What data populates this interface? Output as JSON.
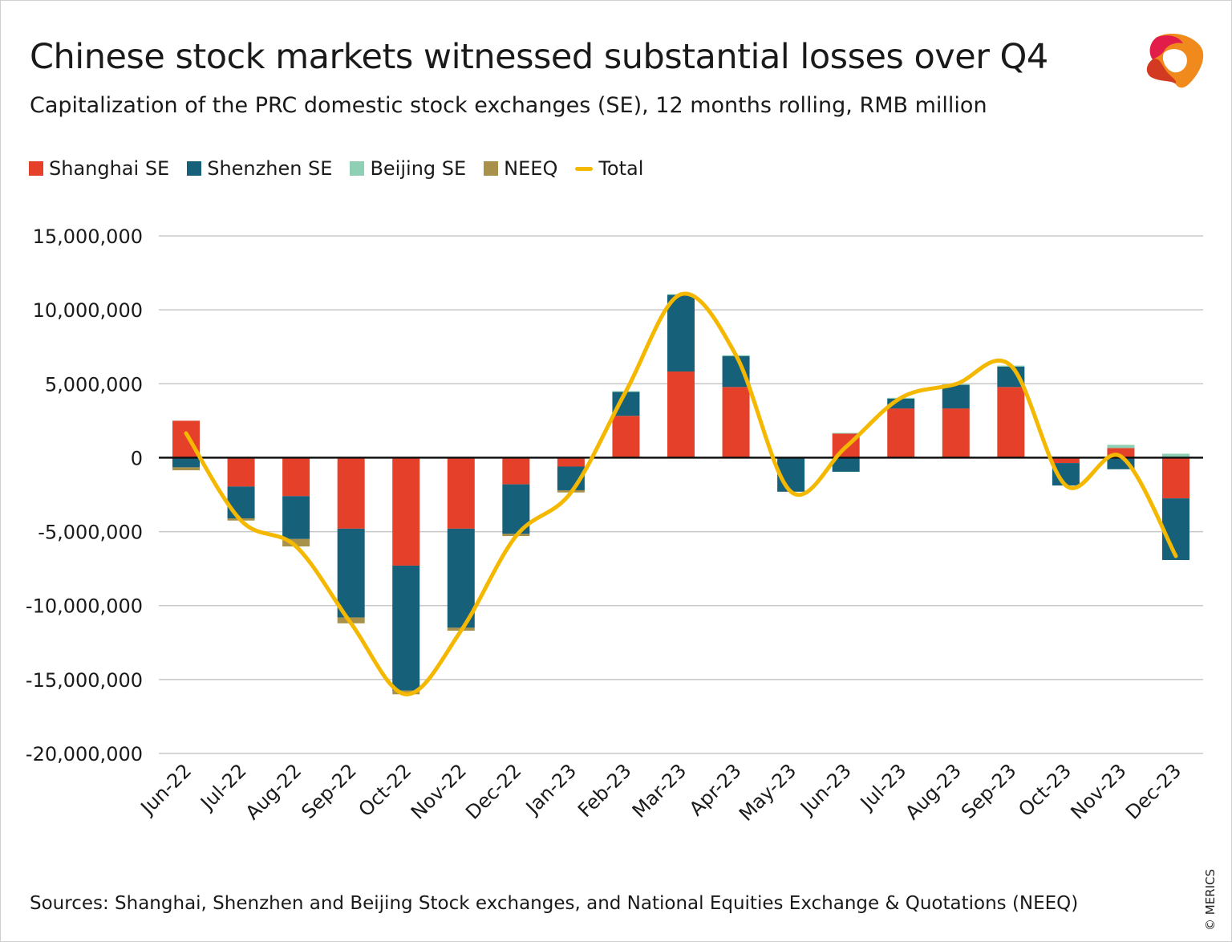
{
  "title": "Chinese stock markets witnessed substantial losses over Q4",
  "subtitle": "Capitalization of the PRC domestic stock exchanges (SE), 12 months rolling, RMB million",
  "source": "Sources: Shanghai, Shenzhen and Beijing Stock exchanges, and National Equities Exchange & Quotations (NEEQ)",
  "copyright": "© MERICS",
  "logo": "MERICS",
  "chart_data": {
    "type": "bar",
    "stacked": true,
    "categories": [
      "Jun-22",
      "Jul-22",
      "Aug-22",
      "Sep-22",
      "Oct-22",
      "Nov-22",
      "Dec-22",
      "Jan-23",
      "Feb-23",
      "Mar-23",
      "Apr-23",
      "May-23",
      "Jun-23",
      "Jul-23",
      "Aug-23",
      "Sep-23",
      "Oct-23",
      "Nov-23",
      "Dec-23"
    ],
    "ylim": [
      -20000000,
      15000000
    ],
    "yticks": [
      15000000,
      10000000,
      5000000,
      0,
      -5000000,
      -10000000,
      -15000000,
      -20000000
    ],
    "ytick_labels": [
      "15,000,000",
      "10,000,000",
      "5,000,000",
      "0",
      "-5,000,000",
      "-10,000,000",
      "-15,000,000",
      "-20,000,000"
    ],
    "grid": true,
    "legend_position": "top-left",
    "series": [
      {
        "name": "Shanghai SE",
        "color": "#e5402a",
        "values": [
          2500000,
          -1950000,
          -2600000,
          -4800000,
          -7300000,
          -4800000,
          -1800000,
          -600000,
          2830000,
          5830000,
          4780000,
          -50000,
          1660000,
          3330000,
          3330000,
          4780000,
          -360000,
          650000,
          -2750000
        ]
      },
      {
        "name": "Shenzhen SE",
        "color": "#17607a",
        "values": [
          -650000,
          -2150000,
          -2900000,
          -6000000,
          -8450000,
          -6700000,
          -3350000,
          -1600000,
          1650000,
          5200000,
          2100000,
          -2250000,
          -950000,
          670000,
          1600000,
          1380000,
          -1520000,
          -780000,
          -4170000
        ]
      },
      {
        "name": "Beijing SE",
        "color": "#8fd0b4",
        "values": [
          0,
          0,
          0,
          0,
          0,
          0,
          0,
          0,
          20000,
          30000,
          50000,
          0,
          20000,
          50000,
          50000,
          70000,
          0,
          220000,
          270000
        ]
      },
      {
        "name": "NEEQ",
        "color": "#a8914a",
        "values": [
          -200000,
          -150000,
          -500000,
          -400000,
          -250000,
          -200000,
          -150000,
          -150000,
          0,
          0,
          0,
          0,
          0,
          0,
          0,
          0,
          0,
          0,
          0
        ]
      },
      {
        "name": "Total",
        "type": "line",
        "color": "#f5b800",
        "values": [
          1650000,
          -4250000,
          -6000000,
          -11200000,
          -16000000,
          -11700000,
          -5300000,
          -2350000,
          4500000,
          11050000,
          6930000,
          -2300000,
          730000,
          4050000,
          4980000,
          6230000,
          -1880000,
          90000,
          -6650000
        ]
      }
    ]
  }
}
